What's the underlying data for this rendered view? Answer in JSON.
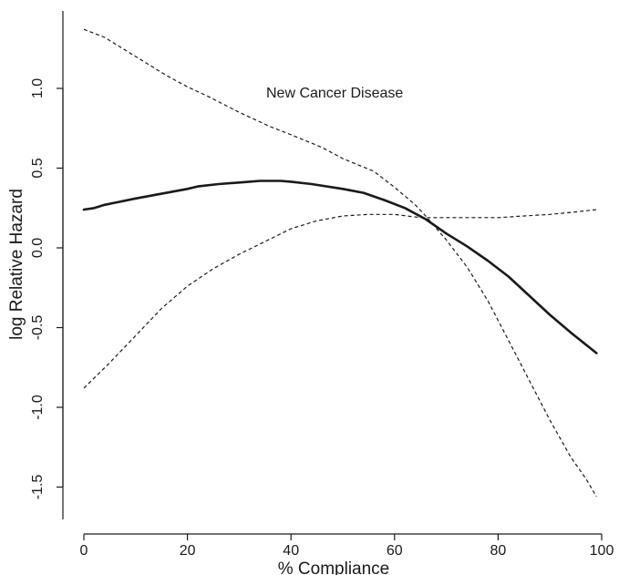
{
  "chart_data": {
    "type": "line",
    "title": "",
    "annotation": "New Cancer Disease",
    "xlabel": "% Compliance",
    "ylabel": "log Relative Hazard",
    "xlim": [
      0,
      100
    ],
    "ylim": [
      -1.65,
      1.45
    ],
    "x_ticks": [
      "0",
      "20",
      "40",
      "60",
      "80",
      "100"
    ],
    "y_ticks": [
      "-1.5",
      "-1.0",
      "-0.5",
      "0.0",
      "0.5",
      "1.0"
    ],
    "grid": false,
    "legend": "none",
    "series": [
      {
        "role": "estimate",
        "x": [
          0,
          2,
          4,
          10,
          20,
          22,
          26,
          30,
          34,
          38,
          40,
          44,
          50,
          54,
          58,
          62,
          66,
          70,
          74,
          78,
          82,
          86,
          90,
          94,
          99
        ],
        "y": [
          0.24,
          0.25,
          0.27,
          0.31,
          0.37,
          0.385,
          0.4,
          0.41,
          0.42,
          0.42,
          0.415,
          0.4,
          0.37,
          0.345,
          0.3,
          0.25,
          0.18,
          0.09,
          0.01,
          -0.08,
          -0.18,
          -0.3,
          -0.42,
          -0.53,
          -0.66
        ]
      },
      {
        "role": "upper confidence limit",
        "x": [
          0,
          4,
          10,
          16,
          20,
          24,
          30,
          36,
          40,
          46,
          50,
          56,
          60,
          64,
          66,
          70,
          74,
          78,
          82,
          86,
          90,
          94,
          97,
          99
        ],
        "y": [
          1.37,
          1.32,
          1.2,
          1.08,
          1.01,
          0.95,
          0.85,
          0.76,
          0.71,
          0.63,
          0.56,
          0.48,
          0.38,
          0.27,
          0.2,
          0.05,
          -0.12,
          -0.33,
          -0.58,
          -0.83,
          -1.08,
          -1.31,
          -1.45,
          -1.56
        ]
      },
      {
        "role": "lower confidence limit",
        "x": [
          0,
          5,
          10,
          15,
          20,
          25,
          30,
          35,
          40,
          45,
          50,
          55,
          60,
          65,
          70,
          80,
          85,
          90,
          95,
          99
        ],
        "y": [
          -0.88,
          -0.72,
          -0.55,
          -0.38,
          -0.24,
          -0.13,
          -0.04,
          0.04,
          0.12,
          0.17,
          0.2,
          0.21,
          0.21,
          0.19,
          0.19,
          0.19,
          0.2,
          0.21,
          0.225,
          0.24
        ]
      }
    ]
  }
}
